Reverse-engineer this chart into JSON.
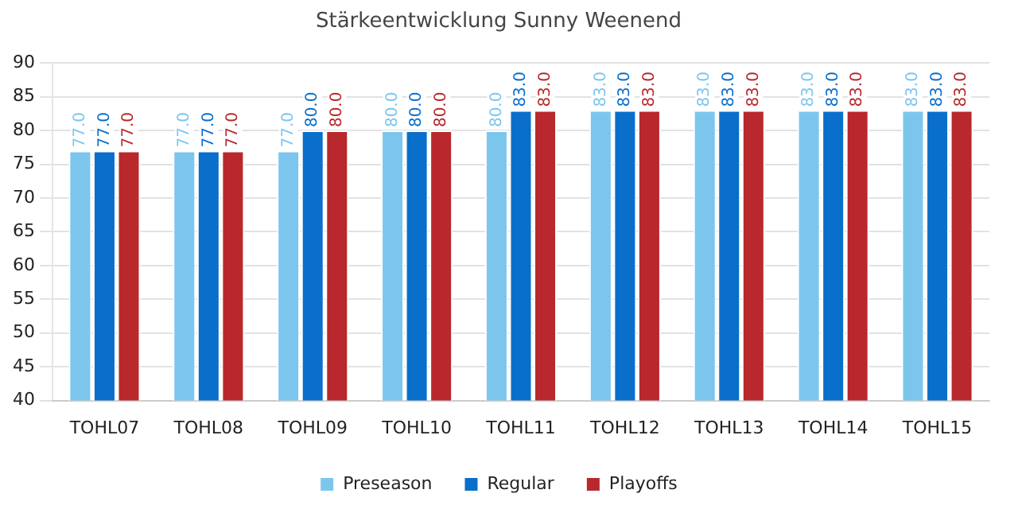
{
  "chart_data": {
    "type": "bar",
    "title": "Stärkeentwicklung Sunny Weenend",
    "categories": [
      "TOHL07",
      "TOHL08",
      "TOHL09",
      "TOHL10",
      "TOHL11",
      "TOHL12",
      "TOHL13",
      "TOHL14",
      "TOHL15"
    ],
    "series": [
      {
        "name": "Preseason",
        "color": "#7cc6ee",
        "values": [
          77,
          77,
          77,
          80,
          80,
          83,
          83,
          83,
          83
        ],
        "value_labels": [
          "77.0",
          "77.0",
          "77.0",
          "80.0",
          "80.0",
          "83.0",
          "83.0",
          "83.0",
          "83.0"
        ]
      },
      {
        "name": "Regular",
        "color": "#0a6ecb",
        "values": [
          77,
          77,
          80,
          80,
          83,
          83,
          83,
          83,
          83
        ],
        "value_labels": [
          "77.0",
          "77.0",
          "80.0",
          "80.0",
          "83.0",
          "83.0",
          "83.0",
          "83.0",
          "83.0"
        ]
      },
      {
        "name": "Playoffs",
        "color": "#b8282c",
        "values": [
          77,
          77,
          80,
          80,
          83,
          83,
          83,
          83,
          83
        ],
        "value_labels": [
          "77.0",
          "77.0",
          "80.0",
          "80.0",
          "83.0",
          "83.0",
          "83.0",
          "83.0",
          "83.0"
        ]
      }
    ],
    "ylim": [
      40,
      90
    ],
    "yticks": [
      40,
      45,
      50,
      55,
      60,
      65,
      70,
      75,
      80,
      85,
      90
    ],
    "grid": "y",
    "legend": "bottom"
  }
}
